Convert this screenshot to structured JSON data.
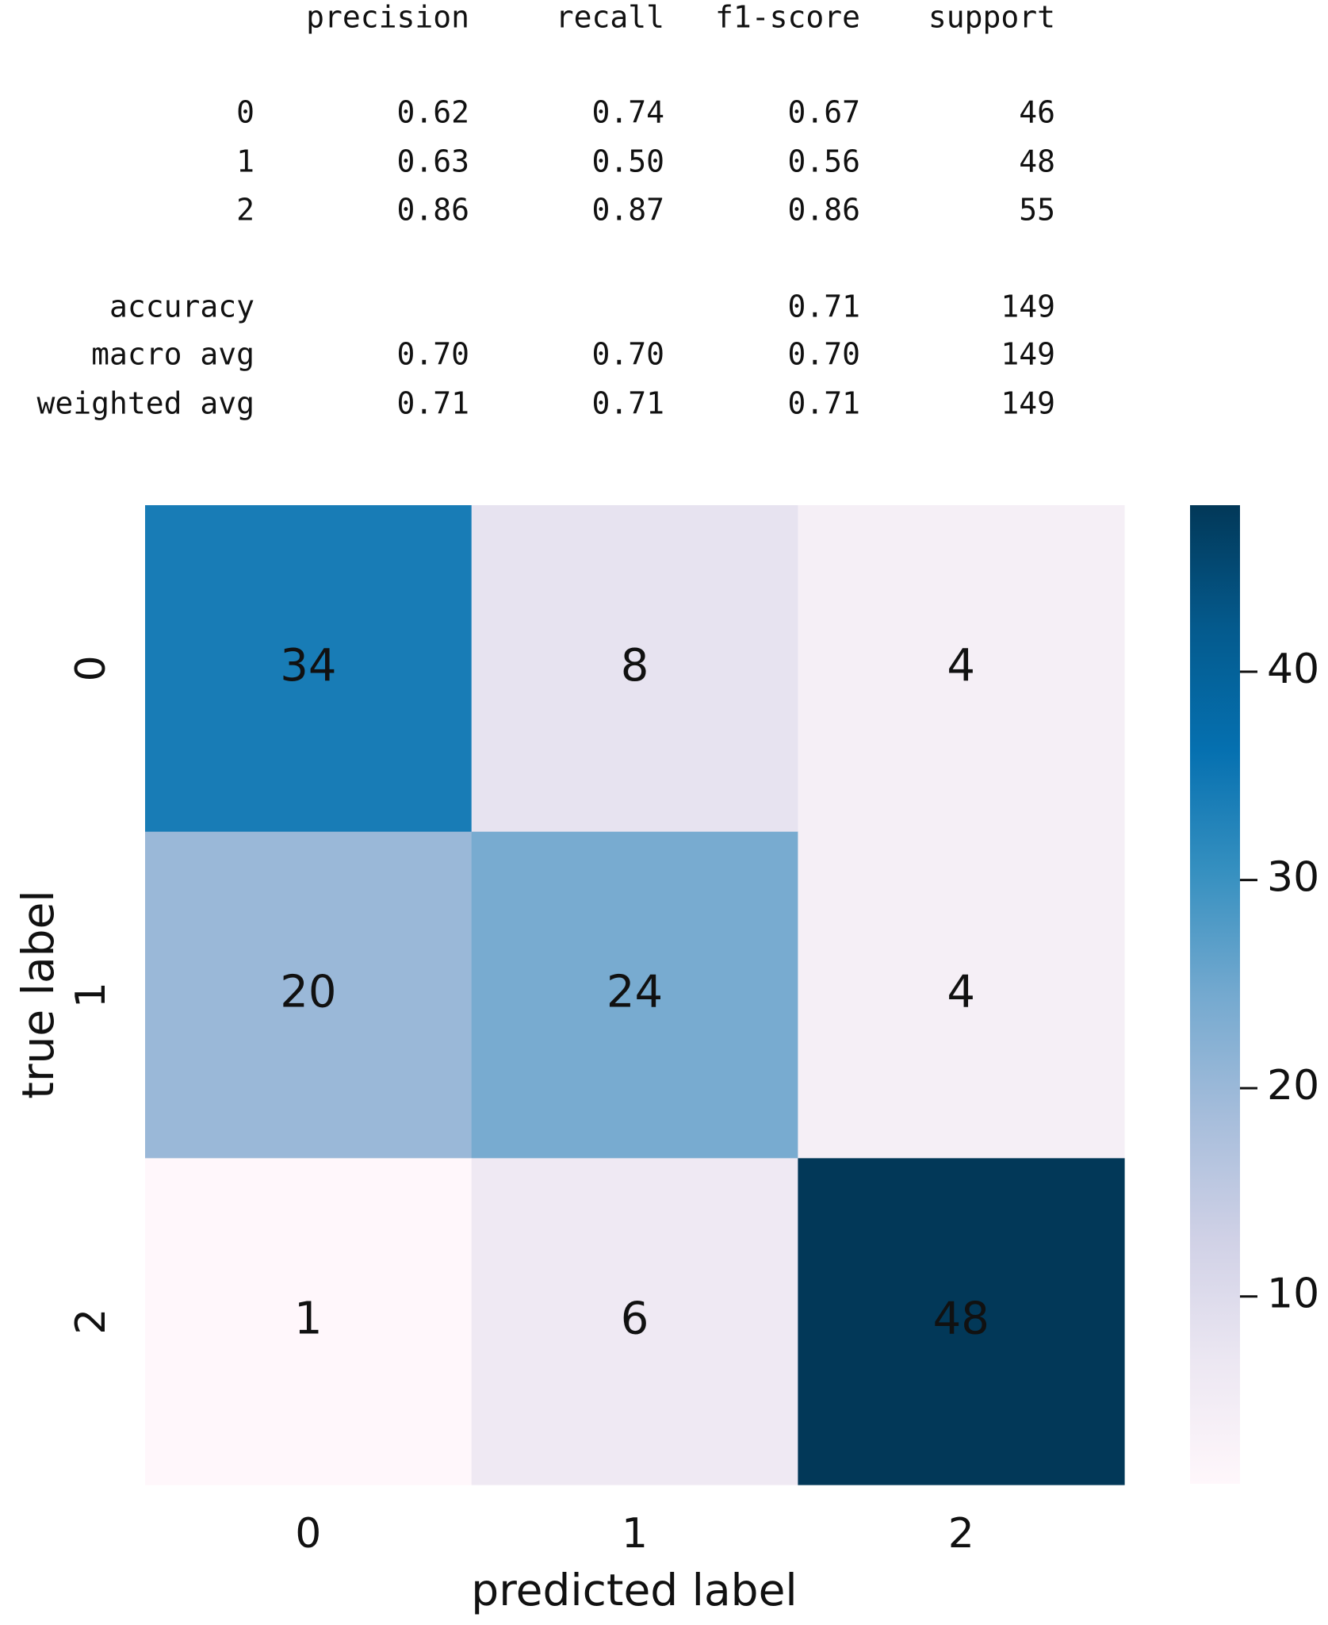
{
  "report": {
    "header": [
      "precision",
      "recall",
      "f1-score",
      "support"
    ],
    "rows": [
      [
        "0",
        "0.62",
        "0.74",
        "0.67",
        "46"
      ],
      [
        "1",
        "0.63",
        "0.50",
        "0.56",
        "48"
      ],
      [
        "2",
        "0.86",
        "0.87",
        "0.86",
        "55"
      ],
      [
        "accuracy",
        null,
        null,
        "0.71",
        "149"
      ],
      [
        "macro avg",
        "0.70",
        "0.70",
        "0.70",
        "149"
      ],
      [
        "weighted avg",
        "0.71",
        "0.71",
        "0.71",
        "149"
      ]
    ]
  },
  "chart_data": {
    "type": "heatmap",
    "colormap": "PuBu",
    "x_label": "predicted label",
    "y_label": "true label",
    "x_categories": [
      "0",
      "1",
      "2"
    ],
    "y_categories": [
      "0",
      "1",
      "2"
    ],
    "values": [
      [
        34,
        8,
        4
      ],
      [
        20,
        24,
        4
      ],
      [
        1,
        6,
        48
      ]
    ],
    "clim": [
      1,
      48
    ],
    "cticks": [
      10,
      20,
      30,
      40
    ]
  }
}
